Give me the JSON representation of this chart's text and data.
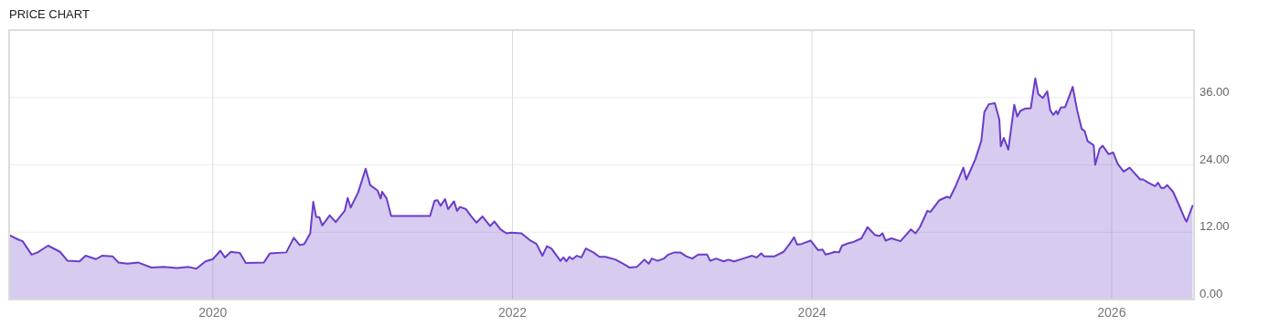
{
  "chart_data": {
    "type": "area",
    "title": "PRICE CHART",
    "x": [
      2018.64,
      2018.7,
      2018.73,
      2018.79,
      2018.83,
      2018.9,
      2018.98,
      2019.03,
      2019.11,
      2019.15,
      2019.22,
      2019.26,
      2019.33,
      2019.37,
      2019.43,
      2019.5,
      2019.59,
      2019.67,
      2019.76,
      2019.84,
      2019.89,
      2019.95,
      2020.0,
      2020.05,
      2020.08,
      2020.12,
      2020.18,
      2020.22,
      2020.34,
      2020.38,
      2020.49,
      2020.54,
      2020.58,
      2020.61,
      2020.65,
      2020.67,
      2020.69,
      2020.71,
      2020.73,
      2020.78,
      2020.82,
      2020.88,
      2020.9,
      2020.92,
      2020.97,
      2021.02,
      2021.05,
      2021.1,
      2021.12,
      2021.13,
      2021.16,
      2021.19,
      2021.45,
      2021.48,
      2021.5,
      2021.52,
      2021.55,
      2021.57,
      2021.61,
      2021.63,
      2021.65,
      2021.69,
      2021.72,
      2021.76,
      2021.8,
      2021.85,
      2021.88,
      2021.92,
      2021.96,
      2021.99,
      2022.06,
      2022.12,
      2022.16,
      2022.2,
      2022.23,
      2022.26,
      2022.29,
      2022.32,
      2022.34,
      2022.36,
      2022.38,
      2022.4,
      2022.43,
      2022.46,
      2022.49,
      2022.54,
      2022.58,
      2022.62,
      2022.69,
      2022.75,
      2022.78,
      2022.83,
      2022.88,
      2022.91,
      2022.93,
      2022.97,
      2023.01,
      2023.04,
      2023.08,
      2023.12,
      2023.16,
      2023.2,
      2023.24,
      2023.3,
      2023.32,
      2023.36,
      2023.41,
      2023.44,
      2023.48,
      2023.54,
      2023.6,
      2023.63,
      2023.66,
      2023.68,
      2023.75,
      2023.81,
      2023.85,
      2023.88,
      2023.9,
      2023.93,
      2023.99,
      2024.04,
      2024.07,
      2024.09,
      2024.13,
      2024.15,
      2024.18,
      2024.2,
      2024.24,
      2024.27,
      2024.33,
      2024.37,
      2024.42,
      2024.45,
      2024.47,
      2024.49,
      2024.53,
      2024.59,
      2024.66,
      2024.69,
      2024.72,
      2024.77,
      2024.79,
      2024.85,
      2024.9,
      2024.92,
      2024.96,
      2025.01,
      2025.03,
      2025.09,
      2025.13,
      2025.15,
      2025.18,
      2025.22,
      2025.25,
      2025.26,
      2025.28,
      2025.31,
      2025.35,
      2025.37,
      2025.39,
      2025.42,
      2025.46,
      2025.49,
      2025.51,
      2025.54,
      2025.57,
      2025.59,
      2025.61,
      2025.63,
      2025.64,
      2025.66,
      2025.69,
      2025.74,
      2025.77,
      2025.8,
      2025.82,
      2025.84,
      2025.88,
      2025.89,
      2025.92,
      2025.94,
      2025.98,
      2026.01,
      2026.04,
      2026.08,
      2026.12,
      2026.19,
      2026.21,
      2026.24,
      2026.29,
      2026.31,
      2026.33,
      2026.35,
      2026.37,
      2026.41,
      2026.45,
      2026.49,
      2026.5,
      2026.54
    ],
    "series": [
      {
        "color": "#6a3dc8",
        "values": [
          11.5,
          10.7,
          10.4,
          8.0,
          8.4,
          9.6,
          8.5,
          6.9,
          6.8,
          7.8,
          7.2,
          7.8,
          7.7,
          6.6,
          6.4,
          6.6,
          5.7,
          5.8,
          5.6,
          5.8,
          5.5,
          6.8,
          7.2,
          8.7,
          7.5,
          8.5,
          8.3,
          6.5,
          6.6,
          8.2,
          8.4,
          11.0,
          9.7,
          9.9,
          11.8,
          17.4,
          14.7,
          14.7,
          13.2,
          15.0,
          13.8,
          15.8,
          18.1,
          16.4,
          19.1,
          23.3,
          20.4,
          19.4,
          18.0,
          19.2,
          18.0,
          14.9,
          14.9,
          17.6,
          17.7,
          16.7,
          17.9,
          16.1,
          17.5,
          15.8,
          16.5,
          16.1,
          15.0,
          13.7,
          14.8,
          13.1,
          13.9,
          12.5,
          11.8,
          11.9,
          11.8,
          10.5,
          9.9,
          7.8,
          9.5,
          9.1,
          8.0,
          6.9,
          7.5,
          6.8,
          7.6,
          7.2,
          7.8,
          7.5,
          9.1,
          8.4,
          7.6,
          7.6,
          7.1,
          6.2,
          5.7,
          5.8,
          7.1,
          6.4,
          7.3,
          6.9,
          7.3,
          8.0,
          8.4,
          8.4,
          7.7,
          7.3,
          8.0,
          8.0,
          6.9,
          7.3,
          6.8,
          7.1,
          6.8,
          7.3,
          7.8,
          7.5,
          8.2,
          7.7,
          7.7,
          8.5,
          9.9,
          11.1,
          9.8,
          9.9,
          10.5,
          8.8,
          8.9,
          8.0,
          8.3,
          8.5,
          8.4,
          9.6,
          10.0,
          10.2,
          10.9,
          12.9,
          11.5,
          11.3,
          11.8,
          10.5,
          10.9,
          10.4,
          12.5,
          11.8,
          12.9,
          15.8,
          15.6,
          17.7,
          18.3,
          18.1,
          20.3,
          23.5,
          21.4,
          25.0,
          28.3,
          33.4,
          34.8,
          35.0,
          32.1,
          27.3,
          28.8,
          26.7,
          34.7,
          32.6,
          33.6,
          34.0,
          34.1,
          39.4,
          36.6,
          35.9,
          37.1,
          33.7,
          32.9,
          33.6,
          33.0,
          34.2,
          34.3,
          37.9,
          33.7,
          30.4,
          30.0,
          28.2,
          27.5,
          24.0,
          26.9,
          27.4,
          25.9,
          26.2,
          24.2,
          22.8,
          23.5,
          21.4,
          21.4,
          20.9,
          20.2,
          20.8,
          19.9,
          19.9,
          20.4,
          19.2,
          16.8,
          14.3,
          13.9,
          16.7
        ]
      }
    ],
    "xlim": [
      2018.64,
      2026.55
    ],
    "xticks": [
      2020,
      2022,
      2024,
      2026
    ],
    "ylim": [
      0,
      48
    ],
    "yticks": [
      {
        "value": 0,
        "label": "0.00"
      },
      {
        "value": 12,
        "label": "12.00"
      },
      {
        "value": 24,
        "label": "24.00"
      },
      {
        "value": 36,
        "label": "36.00"
      }
    ],
    "grid": true
  }
}
